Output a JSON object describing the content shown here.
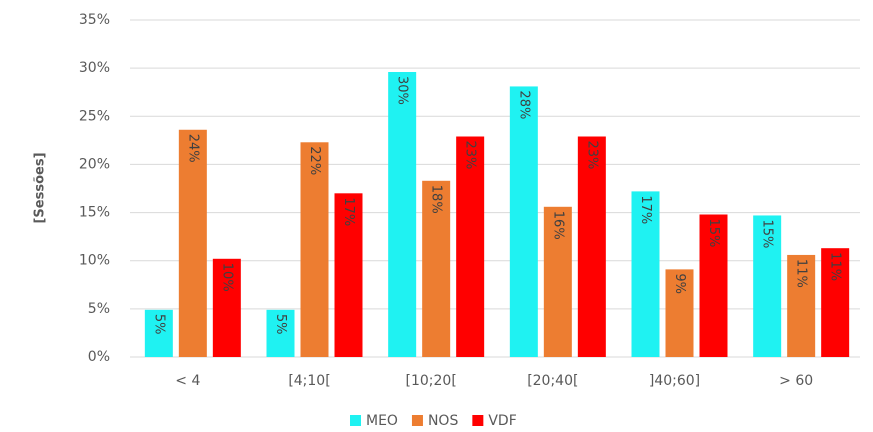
{
  "chart_data": {
    "type": "bar",
    "y_label": "[Sessões]",
    "categories": [
      "< 4",
      "[4;10[",
      "[10;20[",
      "[20;40[",
      "]40;60]",
      "> 60"
    ],
    "series": [
      {
        "name": "MEO",
        "color": "#1ff2f2",
        "values": [
          4.9,
          4.9,
          29.6,
          28.1,
          17.2,
          14.7
        ],
        "value_labels": [
          "5%",
          "5%",
          "30%",
          "28%",
          "17%",
          "15%"
        ]
      },
      {
        "name": "NOS",
        "color": "#ed7d31",
        "values": [
          23.6,
          22.3,
          18.3,
          15.6,
          9.1,
          10.6
        ],
        "value_labels": [
          "24%",
          "22%",
          "18%",
          "16%",
          "9%",
          "11%"
        ]
      },
      {
        "name": "VDF",
        "color": "#ff0000",
        "values": [
          10.2,
          17.0,
          22.9,
          22.9,
          14.8,
          11.3
        ],
        "value_labels": [
          "10%",
          "17%",
          "23%",
          "23%",
          "15%",
          "11%"
        ]
      }
    ],
    "ylim": [
      0,
      35
    ],
    "yticks": [
      {
        "value": 0,
        "label": "0%"
      },
      {
        "value": 5,
        "label": "5%"
      },
      {
        "value": 10,
        "label": "10%"
      },
      {
        "value": 15,
        "label": "15%"
      },
      {
        "value": 20,
        "label": "20%"
      },
      {
        "value": 25,
        "label": "25%"
      },
      {
        "value": 30,
        "label": "30%"
      },
      {
        "value": 35,
        "label": "35%"
      }
    ],
    "grid": true,
    "legend": "bottom"
  }
}
